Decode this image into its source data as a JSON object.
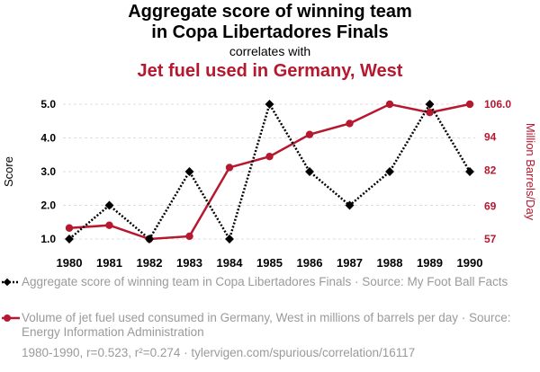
{
  "title_line1": "Aggregate score of winning team",
  "title_line2": "in Copa Libertadores Finals",
  "correlates": "correlates with",
  "subtitle": "Jet fuel used in Germany, West",
  "left_axis_label": "Score",
  "right_axis_label": "Million Barrels/Day",
  "legend": [
    "Aggregate score of winning team in Copa Libertadores Finals · Source: My Foot Ball Facts",
    "Volume of jet fuel used consumed in Germany, West in millions of barrels per day · Source: Energy Information Administration"
  ],
  "footer": "1980-1990, r=0.523, r²=0.274 · tylervigen.com/spurious/correlation/16117",
  "colors": {
    "score": "#000000",
    "fuel": "#b5182f",
    "grid": "#dddddd"
  },
  "chart_data": {
    "type": "line",
    "x": [
      "1980",
      "1981",
      "1982",
      "1983",
      "1984",
      "1985",
      "1986",
      "1987",
      "1988",
      "1989",
      "1990"
    ],
    "series": [
      {
        "name": "Aggregate score of winning team in Copa Libertadores Finals",
        "axis": "left",
        "style": "dotted",
        "marker": "diamond",
        "values": [
          1,
          2,
          1,
          3,
          1,
          5,
          3,
          2,
          3,
          5,
          3
        ]
      },
      {
        "name": "Volume of jet fuel used consumed in Germany, West",
        "axis": "right",
        "style": "solid",
        "marker": "circle",
        "values": [
          61,
          62,
          57,
          58,
          83,
          87,
          95,
          99,
          106,
          103,
          106
        ]
      }
    ],
    "left_ticks": [
      "1.0",
      "2.0",
      "3.0",
      "4.0",
      "5.0"
    ],
    "left_tick_values": [
      1,
      2,
      3,
      4,
      5
    ],
    "right_ticks": [
      "57",
      "69",
      "82",
      "94",
      "106.0"
    ],
    "right_tick_values": [
      57,
      69,
      82,
      94,
      106
    ],
    "left_range": [
      1,
      5
    ],
    "right_range": [
      57,
      106
    ],
    "grid": true
  }
}
